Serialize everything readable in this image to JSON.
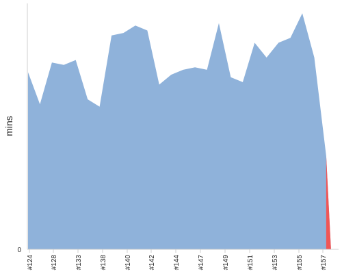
{
  "chart_data": {
    "type": "area",
    "ylabel": "mins",
    "ylim": [
      0,
      100
    ],
    "y_ticks": [
      "0"
    ],
    "x_tick_labels": [
      "#124",
      "#128",
      "#133",
      "#138",
      "#140",
      "#142",
      "#144",
      "#147",
      "#149",
      "#151",
      "#153",
      "#155",
      "#157"
    ],
    "series": [
      {
        "color": "#8fb2da",
        "points": [
          {
            "x": 0,
            "y": 72
          },
          {
            "x": 1,
            "y": 59
          },
          {
            "x": 2,
            "y": 76
          },
          {
            "x": 3,
            "y": 75
          },
          {
            "x": 4,
            "y": 77
          },
          {
            "x": 5,
            "y": 61
          },
          {
            "x": 6,
            "y": 58
          },
          {
            "x": 7,
            "y": 87
          },
          {
            "x": 8,
            "y": 88
          },
          {
            "x": 9,
            "y": 91
          },
          {
            "x": 10,
            "y": 89
          },
          {
            "x": 11,
            "y": 67
          },
          {
            "x": 12,
            "y": 71
          },
          {
            "x": 13,
            "y": 73
          },
          {
            "x": 14,
            "y": 74
          },
          {
            "x": 15,
            "y": 73
          },
          {
            "x": 16,
            "y": 92
          },
          {
            "x": 17,
            "y": 70
          },
          {
            "x": 18,
            "y": 68
          },
          {
            "x": 19,
            "y": 84
          },
          {
            "x": 20,
            "y": 78
          },
          {
            "x": 21,
            "y": 84
          },
          {
            "x": 22,
            "y": 86
          },
          {
            "x": 23,
            "y": 96
          },
          {
            "x": 24,
            "y": 78
          },
          {
            "x": 25,
            "y": 38
          },
          {
            "x": 25.4,
            "y": 0
          }
        ]
      },
      {
        "color": "#f05656",
        "points": [
          {
            "x": 25,
            "y": 38
          },
          {
            "x": 25.4,
            "y": 0
          },
          {
            "x": 25.75,
            "y": 0
          }
        ]
      }
    ]
  }
}
